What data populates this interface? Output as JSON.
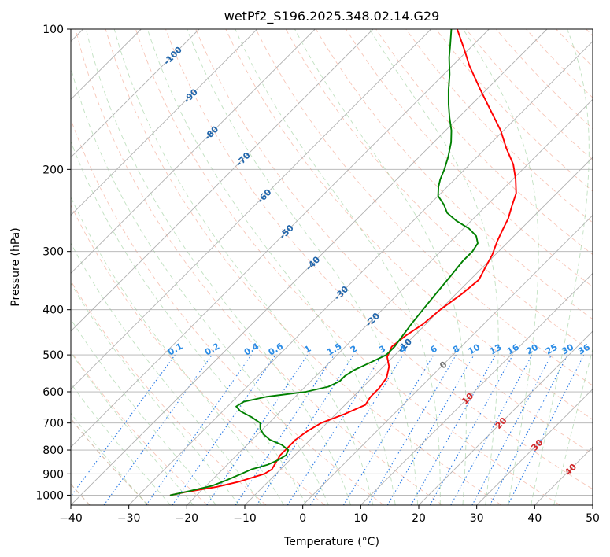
{
  "chart_data": {
    "type": "line",
    "title": "wetPf2_S196.2025.348.02.14.G29",
    "xlabel": "Temperature (°C)",
    "ylabel": "Pressure (hPa)",
    "xlim": [
      -40,
      50
    ],
    "ylim": [
      1050,
      100
    ],
    "y_scale": "log",
    "grid": true,
    "x_ticks": [
      -40,
      -30,
      -20,
      -10,
      0,
      10,
      20,
      30,
      40,
      50
    ],
    "y_ticks": [
      100,
      200,
      300,
      400,
      500,
      600,
      700,
      800,
      900,
      1000
    ],
    "isotherm_labels": [
      {
        "text": "-100",
        "t": -100,
        "p": 114
      },
      {
        "text": "-90",
        "t": -90,
        "p": 139
      },
      {
        "text": "-80",
        "t": -80,
        "p": 167
      },
      {
        "text": "-70",
        "t": -70,
        "p": 190
      },
      {
        "text": "-60",
        "t": -60,
        "p": 228
      },
      {
        "text": "-50",
        "t": -50,
        "p": 272
      },
      {
        "text": "-40",
        "t": -40,
        "p": 318
      },
      {
        "text": "-30",
        "t": -30,
        "p": 368
      },
      {
        "text": "-20",
        "t": -20,
        "p": 420
      },
      {
        "text": "-10",
        "t": -10,
        "p": 477
      },
      {
        "text": "0",
        "t": 0,
        "p": 525
      },
      {
        "text": "10",
        "t": 10,
        "p": 620
      },
      {
        "text": "20",
        "t": 20,
        "p": 700
      },
      {
        "text": "30",
        "t": 30,
        "p": 780
      },
      {
        "text": "40",
        "t": 40,
        "p": 880
      }
    ],
    "mixing_ratio_lines": [
      "0.1",
      "0.2",
      "0.4",
      "0.6",
      "1",
      "1.5",
      "2",
      "3",
      "4",
      "6",
      "8",
      "10",
      "13",
      "16",
      "20",
      "25",
      "30",
      "36"
    ],
    "mixing_ratio_values": [
      0.1,
      0.2,
      0.4,
      0.6,
      1,
      1.5,
      2,
      3,
      4,
      6,
      8,
      10,
      13,
      16,
      20,
      25,
      30,
      36
    ],
    "series": [
      {
        "color": "#ff0000",
        "p": [
          1000,
          985,
          960,
          935,
          900,
          880,
          850,
          820,
          790,
          760,
          730,
          700,
          670,
          640,
          615,
          590,
          560,
          530,
          505,
          480,
          455,
          430,
          400,
          370,
          345,
          325,
          305,
          285,
          270,
          255,
          240,
          225,
          210,
          195,
          180,
          165,
          150,
          135,
          120,
          110,
          100
        ],
        "t": [
          -24.5,
          -22.5,
          -18.0,
          -15.0,
          -12.0,
          -11.5,
          -12.0,
          -12.5,
          -12.5,
          -12.5,
          -12.0,
          -11.0,
          -8.5,
          -6.5,
          -7.0,
          -7.0,
          -7.5,
          -9.0,
          -11.0,
          -12.0,
          -11.5,
          -10.5,
          -10.0,
          -9.0,
          -8.5,
          -9.5,
          -10.5,
          -12.0,
          -13.0,
          -14.0,
          -15.5,
          -17.0,
          -19.5,
          -22.5,
          -26.5,
          -30.5,
          -35.5,
          -41.0,
          -47.0,
          -51.0,
          -55.5
        ]
      },
      {
        "color": "#008000",
        "p": [
          1000,
          980,
          955,
          930,
          900,
          880,
          860,
          840,
          820,
          800,
          780,
          760,
          740,
          720,
          700,
          680,
          660,
          645,
          630,
          615,
          600,
          585,
          570,
          555,
          540,
          520,
          500,
          480,
          455,
          430,
          400,
          370,
          340,
          315,
          300,
          288,
          278,
          268,
          258,
          248,
          238,
          228,
          218,
          210,
          200,
          188,
          175,
          165,
          155,
          145,
          135,
          125,
          115,
          108,
          100
        ],
        "t": [
          -24.5,
          -22.0,
          -19.0,
          -17.5,
          -16.0,
          -15.0,
          -13.0,
          -12.0,
          -11.5,
          -12.0,
          -14.0,
          -17.0,
          -19.0,
          -20.5,
          -21.5,
          -24.0,
          -27.0,
          -28.5,
          -28.0,
          -25.0,
          -19.0,
          -16.0,
          -15.0,
          -15.0,
          -14.5,
          -13.0,
          -11.5,
          -11.5,
          -12.0,
          -12.5,
          -13.0,
          -13.5,
          -14.0,
          -14.5,
          -14.5,
          -15.0,
          -16.5,
          -19.0,
          -22.5,
          -25.5,
          -27.5,
          -30.0,
          -31.5,
          -32.5,
          -33.5,
          -35.0,
          -37.0,
          -39.0,
          -41.5,
          -44.0,
          -46.5,
          -49.0,
          -52.0,
          -54.0,
          -56.5
        ]
      }
    ]
  }
}
